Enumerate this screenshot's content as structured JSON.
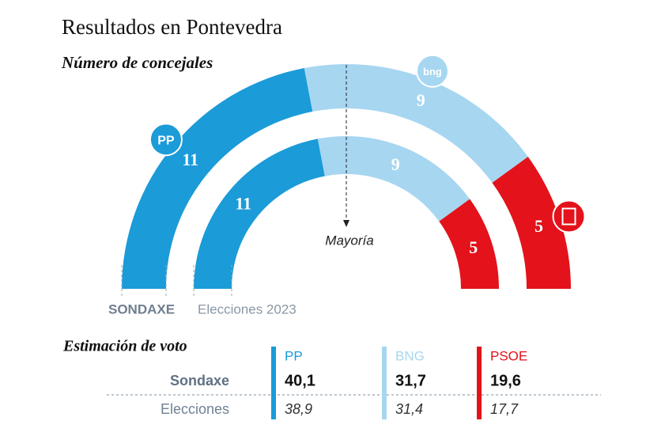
{
  "chart_data": {
    "type": "half_donut",
    "title": "Resultados en Pontevedra",
    "subtitle": "Número de concejales",
    "majority_label": "Mayoría",
    "series": [
      {
        "name": "PP",
        "color": "#1b9bd8",
        "logo": "PP"
      },
      {
        "name": "BNG",
        "color": "#a7d6f1",
        "logo": "bng"
      },
      {
        "name": "PSOE",
        "color": "#e3121b"
      }
    ],
    "rings": [
      {
        "name": "SONDAXE",
        "values": [
          11,
          9,
          5
        ]
      },
      {
        "name": "Elecciones 2023",
        "values": [
          11,
          9,
          5
        ]
      }
    ],
    "table": {
      "title": "Estimación de voto",
      "columns": [
        "PP",
        "BNG",
        "PSOE"
      ],
      "rows": [
        {
          "name": "Sondaxe",
          "values": [
            40.1,
            31.7,
            19.6
          ],
          "value_labels": [
            "40,1",
            "31,7",
            "19,6"
          ]
        },
        {
          "name": "Elecciones",
          "values": [
            38.9,
            31.4,
            17.7
          ],
          "value_labels": [
            "38,9",
            "31,4",
            "17,7"
          ]
        }
      ]
    }
  }
}
